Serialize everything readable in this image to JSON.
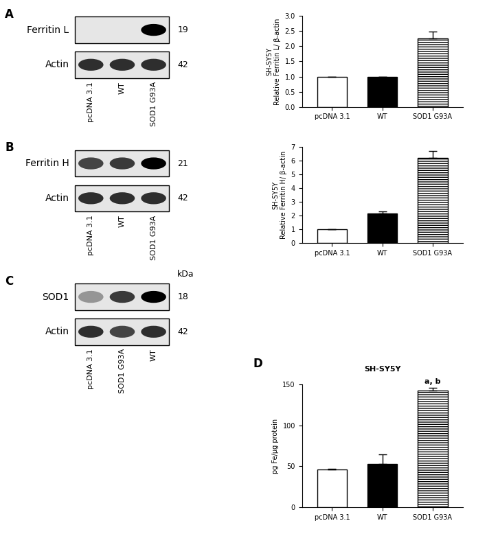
{
  "chart_data": [
    {
      "type": "bar",
      "panel": "A",
      "ylabel": "SH-SY5Y\nRelative Ferritin L/ β-actin",
      "categories": [
        "pcDNA 3.1",
        "WT",
        "SOD1 G93A"
      ],
      "values": [
        1.0,
        1.0,
        2.27
      ],
      "errors": [
        0,
        0,
        0.22
      ],
      "colors": [
        "#ffffff",
        "#000000",
        "#ffffff"
      ],
      "ylim": [
        0,
        3.0
      ],
      "yticks": [
        {
          "value": 0,
          "label": "0.0"
        },
        {
          "value": 0.5,
          "label": "0.5"
        },
        {
          "value": 1,
          "label": "1.0"
        },
        {
          "value": 1.5,
          "label": "1.5"
        },
        {
          "value": 2,
          "label": "2.0"
        },
        {
          "value": 2.5,
          "label": "2.5"
        },
        {
          "value": 3,
          "label": "3.0"
        }
      ]
    },
    {
      "type": "bar",
      "panel": "B",
      "ylabel": "SH-SY5Y\nRelative Ferritin H/ β-actin",
      "categories": [
        "pcDNA 3.1",
        "WT",
        "SOD1 G93A"
      ],
      "values": [
        1.0,
        2.15,
        6.2
      ],
      "errors": [
        0,
        0.15,
        0.5
      ],
      "colors": [
        "#ffffff",
        "#000000",
        "#ffffff"
      ],
      "ylim": [
        0,
        7
      ],
      "yticks": [
        0,
        1,
        2,
        3,
        4,
        5,
        6,
        7
      ]
    },
    {
      "type": "bar",
      "panel": "D",
      "title": "SH-SY5Y",
      "ylabel": "pg Fe/µg protein",
      "categories": [
        "pcDNA 3.1",
        "WT",
        "SOD1 G93A"
      ],
      "values": [
        46,
        53,
        143
      ],
      "errors": [
        1,
        12,
        3
      ],
      "colors": [
        "#ffffff",
        "#000000",
        "#ffffff"
      ],
      "ylim": [
        0,
        150
      ],
      "yticks": [
        0,
        50,
        100,
        150
      ],
      "annotations": [
        {
          "text": "a, b",
          "category": "SOD1 G93A"
        }
      ]
    }
  ],
  "blots": [
    {
      "panel": "A",
      "lanes": [
        "pcDNA 3.1",
        "WT",
        "SOD1 G93A"
      ],
      "rows": [
        {
          "label": "Ferritin L",
          "kda": "19",
          "band_intensity": [
            0,
            0,
            1.0
          ]
        },
        {
          "label": "Actin",
          "kda": "42",
          "band_intensity": [
            0.8,
            0.8,
            0.8
          ]
        }
      ]
    },
    {
      "panel": "B",
      "lanes": [
        "pcDNA 3.1",
        "WT",
        "SOD1 G93A"
      ],
      "rows": [
        {
          "label": "Ferritin H",
          "kda": "21",
          "band_intensity": [
            0.7,
            0.75,
            1.0
          ]
        },
        {
          "label": "Actin",
          "kda": "42",
          "band_intensity": [
            0.8,
            0.8,
            0.8
          ]
        }
      ]
    },
    {
      "panel": "C",
      "kda_header": "kDa",
      "lanes": [
        "pcDNA 3.1",
        "SOD1 G93A",
        "WT"
      ],
      "rows": [
        {
          "label": "SOD1",
          "kda": "18",
          "band_intensity": [
            0.35,
            0.75,
            1.0
          ]
        },
        {
          "label": "Actin",
          "kda": "42",
          "band_intensity": [
            0.8,
            0.7,
            0.8
          ]
        }
      ]
    }
  ]
}
